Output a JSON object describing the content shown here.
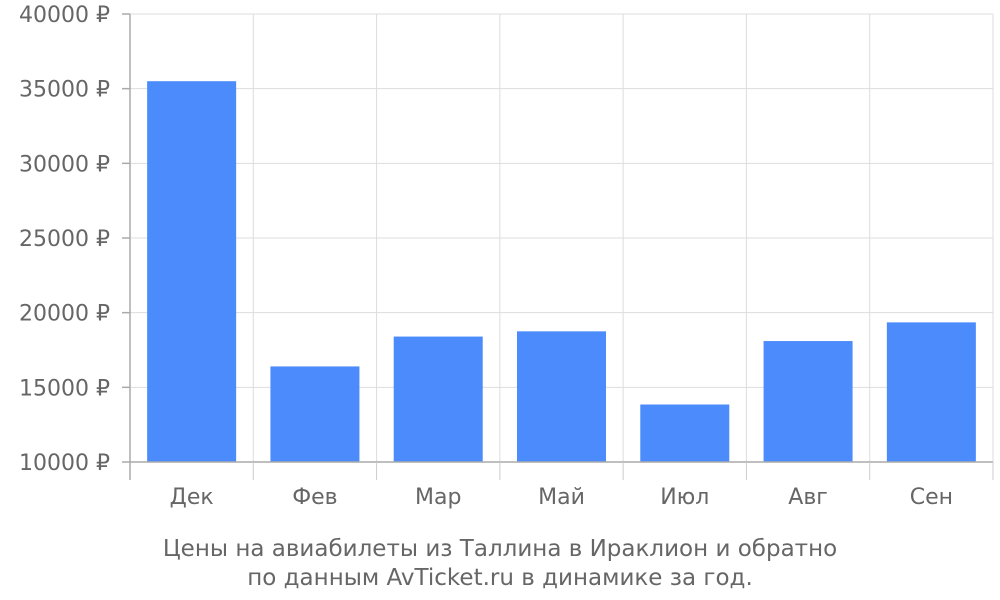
{
  "chart_data": {
    "type": "bar",
    "title": "Цены на авиабилеты из Таллина в Ираклион и обратно",
    "subtitle": "по данным AvTicket.ru в динамике за год.",
    "xlabel": "",
    "ylabel": "",
    "categories": [
      "Дек",
      "Фев",
      "Мар",
      "Май",
      "Июл",
      "Авг",
      "Сен"
    ],
    "values": [
      35500,
      16400,
      18400,
      18750,
      13850,
      18100,
      19350
    ],
    "ylim": [
      10000,
      40000
    ],
    "yticks": [
      10000,
      15000,
      20000,
      25000,
      30000,
      35000,
      40000
    ],
    "ytick_labels": [
      "10000 ₽",
      "15000 ₽",
      "20000 ₽",
      "25000 ₽",
      "30000 ₽",
      "35000 ₽",
      "40000 ₽"
    ],
    "grid": true,
    "bar_color": "#4b8bfb"
  }
}
